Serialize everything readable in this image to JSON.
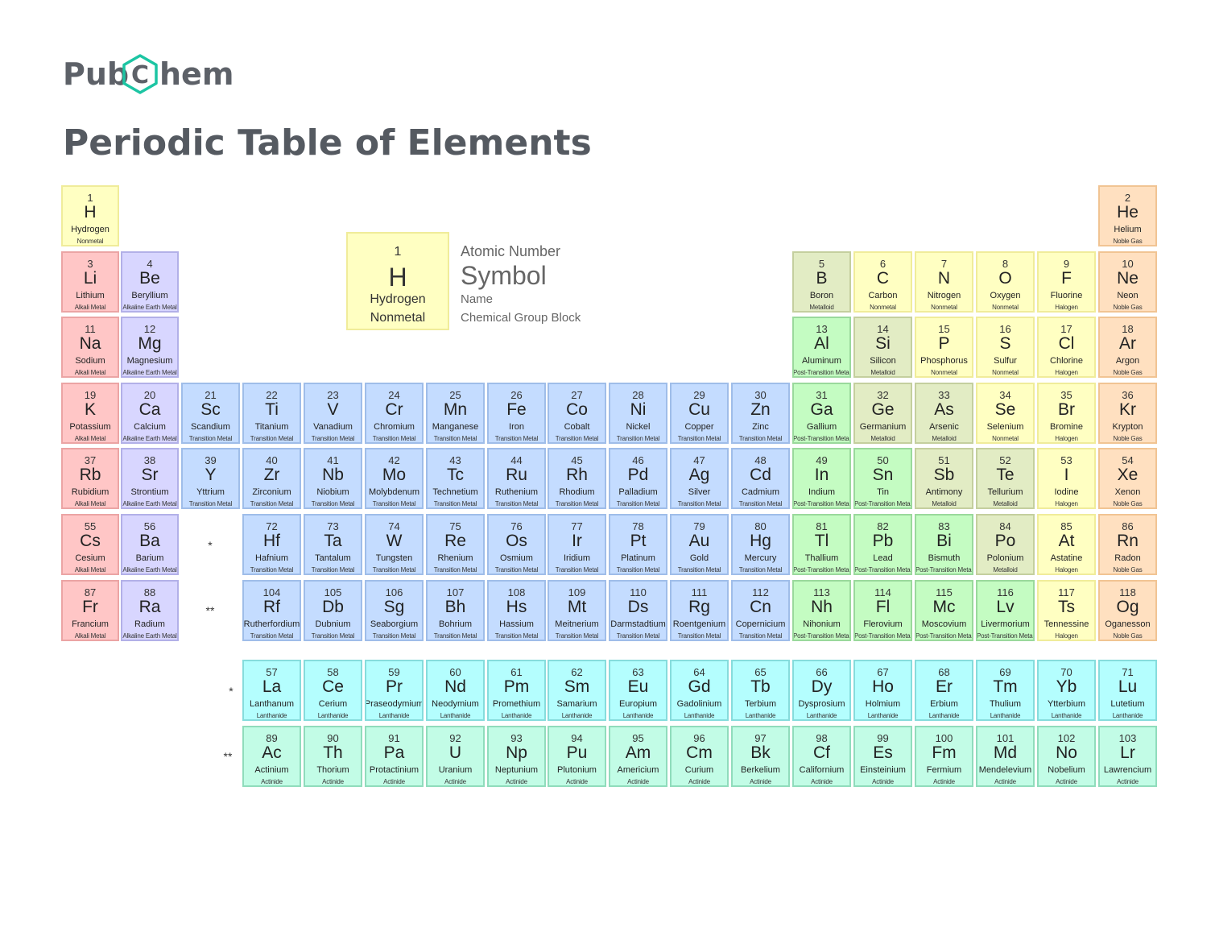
{
  "brand": {
    "logo_left": "Pub",
    "logo_mid": "C",
    "logo_right": "hem"
  },
  "title": "Periodic Table of Elements",
  "legend": {
    "cell": {
      "number": "1",
      "symbol": "H",
      "name": "Hydrogen",
      "group": "Nonmetal"
    },
    "keys": {
      "number": "Atomic Number",
      "symbol": "Symbol",
      "name": "Name",
      "group": "Chemical Group Block"
    }
  },
  "markers": {
    "lanthanide": "*",
    "actinide": "**"
  },
  "group_colors": {
    "Nonmetal": [
      "#ffffc2",
      "#f0ec9a"
    ],
    "Noble Gas": [
      "#ffe0c0",
      "#f1c493"
    ],
    "Alkali Metal": [
      "#ffc6c6",
      "#eba4a4"
    ],
    "Alkaline Earth Metal": [
      "#d8d6ff",
      "#b2b0e8"
    ],
    "Metalloid": [
      "#e2ecc4",
      "#c4cf9e"
    ],
    "Halogen": [
      "#ffffc2",
      "#f0ec9a"
    ],
    "Transition Metal": [
      "#c4dcff",
      "#9fbde9"
    ],
    "Post-Transition Metal": [
      "#c4fcc2",
      "#9ad99c"
    ],
    "Lanthanide": [
      "#b4fefe",
      "#86dcdc"
    ],
    "Actinide": [
      "#c2fce6",
      "#90dcbc"
    ]
  },
  "elements": [
    {
      "n": "1",
      "s": "H",
      "name": "Hydrogen",
      "g": "Nonmetal",
      "r": 1,
      "c": 1
    },
    {
      "n": "2",
      "s": "He",
      "name": "Helium",
      "g": "Noble Gas",
      "r": 1,
      "c": 18
    },
    {
      "n": "3",
      "s": "Li",
      "name": "Lithium",
      "g": "Alkali Metal",
      "r": 2,
      "c": 1
    },
    {
      "n": "4",
      "s": "Be",
      "name": "Beryllium",
      "g": "Alkaline Earth Metal",
      "r": 2,
      "c": 2
    },
    {
      "n": "5",
      "s": "B",
      "name": "Boron",
      "g": "Metalloid",
      "r": 2,
      "c": 13
    },
    {
      "n": "6",
      "s": "C",
      "name": "Carbon",
      "g": "Nonmetal",
      "r": 2,
      "c": 14
    },
    {
      "n": "7",
      "s": "N",
      "name": "Nitrogen",
      "g": "Nonmetal",
      "r": 2,
      "c": 15
    },
    {
      "n": "8",
      "s": "O",
      "name": "Oxygen",
      "g": "Nonmetal",
      "r": 2,
      "c": 16
    },
    {
      "n": "9",
      "s": "F",
      "name": "Fluorine",
      "g": "Halogen",
      "r": 2,
      "c": 17
    },
    {
      "n": "10",
      "s": "Ne",
      "name": "Neon",
      "g": "Noble Gas",
      "r": 2,
      "c": 18
    },
    {
      "n": "11",
      "s": "Na",
      "name": "Sodium",
      "g": "Alkali Metal",
      "r": 3,
      "c": 1
    },
    {
      "n": "12",
      "s": "Mg",
      "name": "Magnesium",
      "g": "Alkaline Earth Metal",
      "r": 3,
      "c": 2
    },
    {
      "n": "13",
      "s": "Al",
      "name": "Aluminum",
      "g": "Post-Transition Metal",
      "r": 3,
      "c": 13
    },
    {
      "n": "14",
      "s": "Si",
      "name": "Silicon",
      "g": "Metalloid",
      "r": 3,
      "c": 14
    },
    {
      "n": "15",
      "s": "P",
      "name": "Phosphorus",
      "g": "Nonmetal",
      "r": 3,
      "c": 15
    },
    {
      "n": "16",
      "s": "S",
      "name": "Sulfur",
      "g": "Nonmetal",
      "r": 3,
      "c": 16
    },
    {
      "n": "17",
      "s": "Cl",
      "name": "Chlorine",
      "g": "Halogen",
      "r": 3,
      "c": 17
    },
    {
      "n": "18",
      "s": "Ar",
      "name": "Argon",
      "g": "Noble Gas",
      "r": 3,
      "c": 18
    },
    {
      "n": "19",
      "s": "K",
      "name": "Potassium",
      "g": "Alkali Metal",
      "r": 4,
      "c": 1
    },
    {
      "n": "20",
      "s": "Ca",
      "name": "Calcium",
      "g": "Alkaline Earth Metal",
      "r": 4,
      "c": 2
    },
    {
      "n": "21",
      "s": "Sc",
      "name": "Scandium",
      "g": "Transition Metal",
      "r": 4,
      "c": 3
    },
    {
      "n": "22",
      "s": "Ti",
      "name": "Titanium",
      "g": "Transition Metal",
      "r": 4,
      "c": 4
    },
    {
      "n": "23",
      "s": "V",
      "name": "Vanadium",
      "g": "Transition Metal",
      "r": 4,
      "c": 5
    },
    {
      "n": "24",
      "s": "Cr",
      "name": "Chromium",
      "g": "Transition Metal",
      "r": 4,
      "c": 6
    },
    {
      "n": "25",
      "s": "Mn",
      "name": "Manganese",
      "g": "Transition Metal",
      "r": 4,
      "c": 7
    },
    {
      "n": "26",
      "s": "Fe",
      "name": "Iron",
      "g": "Transition Metal",
      "r": 4,
      "c": 8
    },
    {
      "n": "27",
      "s": "Co",
      "name": "Cobalt",
      "g": "Transition Metal",
      "r": 4,
      "c": 9
    },
    {
      "n": "28",
      "s": "Ni",
      "name": "Nickel",
      "g": "Transition Metal",
      "r": 4,
      "c": 10
    },
    {
      "n": "29",
      "s": "Cu",
      "name": "Copper",
      "g": "Transition Metal",
      "r": 4,
      "c": 11
    },
    {
      "n": "30",
      "s": "Zn",
      "name": "Zinc",
      "g": "Transition Metal",
      "r": 4,
      "c": 12
    },
    {
      "n": "31",
      "s": "Ga",
      "name": "Gallium",
      "g": "Post-Transition Metal",
      "r": 4,
      "c": 13
    },
    {
      "n": "32",
      "s": "Ge",
      "name": "Germanium",
      "g": "Metalloid",
      "r": 4,
      "c": 14
    },
    {
      "n": "33",
      "s": "As",
      "name": "Arsenic",
      "g": "Metalloid",
      "r": 4,
      "c": 15
    },
    {
      "n": "34",
      "s": "Se",
      "name": "Selenium",
      "g": "Nonmetal",
      "r": 4,
      "c": 16
    },
    {
      "n": "35",
      "s": "Br",
      "name": "Bromine",
      "g": "Halogen",
      "r": 4,
      "c": 17
    },
    {
      "n": "36",
      "s": "Kr",
      "name": "Krypton",
      "g": "Noble Gas",
      "r": 4,
      "c": 18
    },
    {
      "n": "37",
      "s": "Rb",
      "name": "Rubidium",
      "g": "Alkali Metal",
      "r": 5,
      "c": 1
    },
    {
      "n": "38",
      "s": "Sr",
      "name": "Strontium",
      "g": "Alkaline Earth Metal",
      "r": 5,
      "c": 2
    },
    {
      "n": "39",
      "s": "Y",
      "name": "Yttrium",
      "g": "Transition Metal",
      "r": 5,
      "c": 3
    },
    {
      "n": "40",
      "s": "Zr",
      "name": "Zirconium",
      "g": "Transition Metal",
      "r": 5,
      "c": 4
    },
    {
      "n": "41",
      "s": "Nb",
      "name": "Niobium",
      "g": "Transition Metal",
      "r": 5,
      "c": 5
    },
    {
      "n": "42",
      "s": "Mo",
      "name": "Molybdenum",
      "g": "Transition Metal",
      "r": 5,
      "c": 6
    },
    {
      "n": "43",
      "s": "Tc",
      "name": "Technetium",
      "g": "Transition Metal",
      "r": 5,
      "c": 7
    },
    {
      "n": "44",
      "s": "Ru",
      "name": "Ruthenium",
      "g": "Transition Metal",
      "r": 5,
      "c": 8
    },
    {
      "n": "45",
      "s": "Rh",
      "name": "Rhodium",
      "g": "Transition Metal",
      "r": 5,
      "c": 9
    },
    {
      "n": "46",
      "s": "Pd",
      "name": "Palladium",
      "g": "Transition Metal",
      "r": 5,
      "c": 10
    },
    {
      "n": "47",
      "s": "Ag",
      "name": "Silver",
      "g": "Transition Metal",
      "r": 5,
      "c": 11
    },
    {
      "n": "48",
      "s": "Cd",
      "name": "Cadmium",
      "g": "Transition Metal",
      "r": 5,
      "c": 12
    },
    {
      "n": "49",
      "s": "In",
      "name": "Indium",
      "g": "Post-Transition Metal",
      "r": 5,
      "c": 13
    },
    {
      "n": "50",
      "s": "Sn",
      "name": "Tin",
      "g": "Post-Transition Metal",
      "r": 5,
      "c": 14
    },
    {
      "n": "51",
      "s": "Sb",
      "name": "Antimony",
      "g": "Metalloid",
      "r": 5,
      "c": 15
    },
    {
      "n": "52",
      "s": "Te",
      "name": "Tellurium",
      "g": "Metalloid",
      "r": 5,
      "c": 16
    },
    {
      "n": "53",
      "s": "I",
      "name": "Iodine",
      "g": "Halogen",
      "r": 5,
      "c": 17
    },
    {
      "n": "54",
      "s": "Xe",
      "name": "Xenon",
      "g": "Noble Gas",
      "r": 5,
      "c": 18
    },
    {
      "n": "55",
      "s": "Cs",
      "name": "Cesium",
      "g": "Alkali Metal",
      "r": 6,
      "c": 1
    },
    {
      "n": "56",
      "s": "Ba",
      "name": "Barium",
      "g": "Alkaline Earth Metal",
      "r": 6,
      "c": 2
    },
    {
      "n": "72",
      "s": "Hf",
      "name": "Hafnium",
      "g": "Transition Metal",
      "r": 6,
      "c": 4
    },
    {
      "n": "73",
      "s": "Ta",
      "name": "Tantalum",
      "g": "Transition Metal",
      "r": 6,
      "c": 5
    },
    {
      "n": "74",
      "s": "W",
      "name": "Tungsten",
      "g": "Transition Metal",
      "r": 6,
      "c": 6
    },
    {
      "n": "75",
      "s": "Re",
      "name": "Rhenium",
      "g": "Transition Metal",
      "r": 6,
      "c": 7
    },
    {
      "n": "76",
      "s": "Os",
      "name": "Osmium",
      "g": "Transition Metal",
      "r": 6,
      "c": 8
    },
    {
      "n": "77",
      "s": "Ir",
      "name": "Iridium",
      "g": "Transition Metal",
      "r": 6,
      "c": 9
    },
    {
      "n": "78",
      "s": "Pt",
      "name": "Platinum",
      "g": "Transition Metal",
      "r": 6,
      "c": 10
    },
    {
      "n": "79",
      "s": "Au",
      "name": "Gold",
      "g": "Transition Metal",
      "r": 6,
      "c": 11
    },
    {
      "n": "80",
      "s": "Hg",
      "name": "Mercury",
      "g": "Transition Metal",
      "r": 6,
      "c": 12
    },
    {
      "n": "81",
      "s": "Tl",
      "name": "Thallium",
      "g": "Post-Transition Metal",
      "r": 6,
      "c": 13
    },
    {
      "n": "82",
      "s": "Pb",
      "name": "Lead",
      "g": "Post-Transition Metal",
      "r": 6,
      "c": 14
    },
    {
      "n": "83",
      "s": "Bi",
      "name": "Bismuth",
      "g": "Post-Transition Metal",
      "r": 6,
      "c": 15
    },
    {
      "n": "84",
      "s": "Po",
      "name": "Polonium",
      "g": "Metalloid",
      "r": 6,
      "c": 16
    },
    {
      "n": "85",
      "s": "At",
      "name": "Astatine",
      "g": "Halogen",
      "r": 6,
      "c": 17
    },
    {
      "n": "86",
      "s": "Rn",
      "name": "Radon",
      "g": "Noble Gas",
      "r": 6,
      "c": 18
    },
    {
      "n": "87",
      "s": "Fr",
      "name": "Francium",
      "g": "Alkali Metal",
      "r": 7,
      "c": 1
    },
    {
      "n": "88",
      "s": "Ra",
      "name": "Radium",
      "g": "Alkaline Earth Metal",
      "r": 7,
      "c": 2
    },
    {
      "n": "104",
      "s": "Rf",
      "name": "Rutherfordium",
      "g": "Transition Metal",
      "r": 7,
      "c": 4
    },
    {
      "n": "105",
      "s": "Db",
      "name": "Dubnium",
      "g": "Transition Metal",
      "r": 7,
      "c": 5
    },
    {
      "n": "106",
      "s": "Sg",
      "name": "Seaborgium",
      "g": "Transition Metal",
      "r": 7,
      "c": 6
    },
    {
      "n": "107",
      "s": "Bh",
      "name": "Bohrium",
      "g": "Transition Metal",
      "r": 7,
      "c": 7
    },
    {
      "n": "108",
      "s": "Hs",
      "name": "Hassium",
      "g": "Transition Metal",
      "r": 7,
      "c": 8
    },
    {
      "n": "109",
      "s": "Mt",
      "name": "Meitnerium",
      "g": "Transition Metal",
      "r": 7,
      "c": 9
    },
    {
      "n": "110",
      "s": "Ds",
      "name": "Darmstadtium",
      "g": "Transition Metal",
      "r": 7,
      "c": 10
    },
    {
      "n": "111",
      "s": "Rg",
      "name": "Roentgenium",
      "g": "Transition Metal",
      "r": 7,
      "c": 11
    },
    {
      "n": "112",
      "s": "Cn",
      "name": "Copernicium",
      "g": "Transition Metal",
      "r": 7,
      "c": 12
    },
    {
      "n": "113",
      "s": "Nh",
      "name": "Nihonium",
      "g": "Post-Transition Metal",
      "r": 7,
      "c": 13
    },
    {
      "n": "114",
      "s": "Fl",
      "name": "Flerovium",
      "g": "Post-Transition Metal",
      "r": 7,
      "c": 14
    },
    {
      "n": "115",
      "s": "Mc",
      "name": "Moscovium",
      "g": "Post-Transition Metal",
      "r": 7,
      "c": 15
    },
    {
      "n": "116",
      "s": "Lv",
      "name": "Livermorium",
      "g": "Post-Transition Metal",
      "r": 7,
      "c": 16
    },
    {
      "n": "117",
      "s": "Ts",
      "name": "Tennessine",
      "g": "Halogen",
      "r": 7,
      "c": 17
    },
    {
      "n": "118",
      "s": "Og",
      "name": "Oganesson",
      "g": "Noble Gas",
      "r": 7,
      "c": 18
    },
    {
      "n": "57",
      "s": "La",
      "name": "Lanthanum",
      "g": "Lanthanide",
      "r": 8,
      "c": 4
    },
    {
      "n": "58",
      "s": "Ce",
      "name": "Cerium",
      "g": "Lanthanide",
      "r": 8,
      "c": 5
    },
    {
      "n": "59",
      "s": "Pr",
      "name": "Praseodymium",
      "g": "Lanthanide",
      "r": 8,
      "c": 6
    },
    {
      "n": "60",
      "s": "Nd",
      "name": "Neodymium",
      "g": "Lanthanide",
      "r": 8,
      "c": 7
    },
    {
      "n": "61",
      "s": "Pm",
      "name": "Promethium",
      "g": "Lanthanide",
      "r": 8,
      "c": 8
    },
    {
      "n": "62",
      "s": "Sm",
      "name": "Samarium",
      "g": "Lanthanide",
      "r": 8,
      "c": 9
    },
    {
      "n": "63",
      "s": "Eu",
      "name": "Europium",
      "g": "Lanthanide",
      "r": 8,
      "c": 10
    },
    {
      "n": "64",
      "s": "Gd",
      "name": "Gadolinium",
      "g": "Lanthanide",
      "r": 8,
      "c": 11
    },
    {
      "n": "65",
      "s": "Tb",
      "name": "Terbium",
      "g": "Lanthanide",
      "r": 8,
      "c": 12
    },
    {
      "n": "66",
      "s": "Dy",
      "name": "Dysprosium",
      "g": "Lanthanide",
      "r": 8,
      "c": 13
    },
    {
      "n": "67",
      "s": "Ho",
      "name": "Holmium",
      "g": "Lanthanide",
      "r": 8,
      "c": 14
    },
    {
      "n": "68",
      "s": "Er",
      "name": "Erbium",
      "g": "Lanthanide",
      "r": 8,
      "c": 15
    },
    {
      "n": "69",
      "s": "Tm",
      "name": "Thulium",
      "g": "Lanthanide",
      "r": 8,
      "c": 16
    },
    {
      "n": "70",
      "s": "Yb",
      "name": "Ytterbium",
      "g": "Lanthanide",
      "r": 8,
      "c": 17
    },
    {
      "n": "71",
      "s": "Lu",
      "name": "Lutetium",
      "g": "Lanthanide",
      "r": 8,
      "c": 18
    },
    {
      "n": "89",
      "s": "Ac",
      "name": "Actinium",
      "g": "Actinide",
      "r": 9,
      "c": 4
    },
    {
      "n": "90",
      "s": "Th",
      "name": "Thorium",
      "g": "Actinide",
      "r": 9,
      "c": 5
    },
    {
      "n": "91",
      "s": "Pa",
      "name": "Protactinium",
      "g": "Actinide",
      "r": 9,
      "c": 6
    },
    {
      "n": "92",
      "s": "U",
      "name": "Uranium",
      "g": "Actinide",
      "r": 9,
      "c": 7
    },
    {
      "n": "93",
      "s": "Np",
      "name": "Neptunium",
      "g": "Actinide",
      "r": 9,
      "c": 8
    },
    {
      "n": "94",
      "s": "Pu",
      "name": "Plutonium",
      "g": "Actinide",
      "r": 9,
      "c": 9
    },
    {
      "n": "95",
      "s": "Am",
      "name": "Americium",
      "g": "Actinide",
      "r": 9,
      "c": 10
    },
    {
      "n": "96",
      "s": "Cm",
      "name": "Curium",
      "g": "Actinide",
      "r": 9,
      "c": 11
    },
    {
      "n": "97",
      "s": "Bk",
      "name": "Berkelium",
      "g": "Actinide",
      "r": 9,
      "c": 12
    },
    {
      "n": "98",
      "s": "Cf",
      "name": "Californium",
      "g": "Actinide",
      "r": 9,
      "c": 13
    },
    {
      "n": "99",
      "s": "Es",
      "name": "Einsteinium",
      "g": "Actinide",
      "r": 9,
      "c": 14
    },
    {
      "n": "100",
      "s": "Fm",
      "name": "Fermium",
      "g": "Actinide",
      "r": 9,
      "c": 15
    },
    {
      "n": "101",
      "s": "Md",
      "name": "Mendelevium",
      "g": "Actinide",
      "r": 9,
      "c": 16
    },
    {
      "n": "102",
      "s": "No",
      "name": "Nobelium",
      "g": "Actinide",
      "r": 9,
      "c": 17
    },
    {
      "n": "103",
      "s": "Lr",
      "name": "Lawrencium",
      "g": "Actinide",
      "r": 9,
      "c": 18
    }
  ]
}
